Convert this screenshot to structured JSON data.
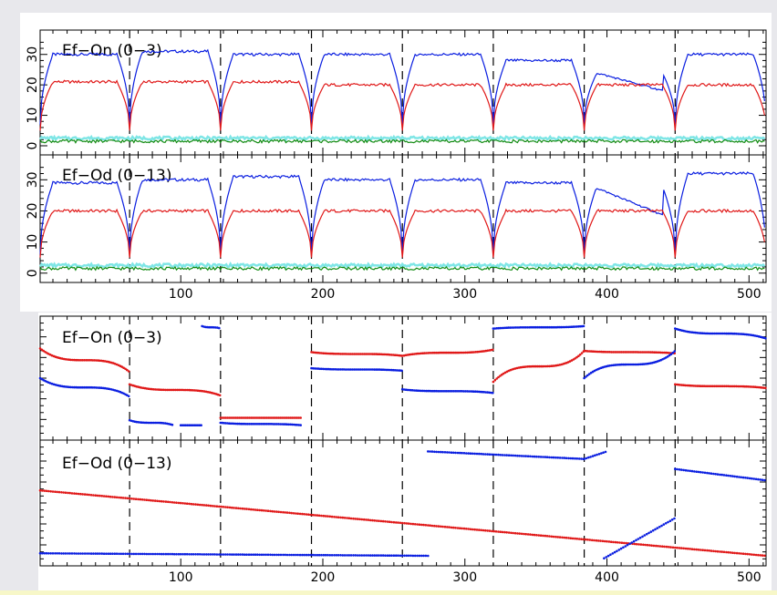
{
  "colors": {
    "blue": "#0a1ee0",
    "red": "#e01818",
    "green": "#108a10",
    "cyan": "#7fe6e6",
    "panel_bg": "#ffffff",
    "page_bg": "#e8e8ec"
  },
  "chart_data": [
    {
      "type": "line",
      "title": "Ef−On (0−3)",
      "xlim": [
        1,
        512
      ],
      "ylim": [
        -3,
        38
      ],
      "yticks": [
        0,
        10,
        20,
        30
      ],
      "show_x_tick_labels": false,
      "segment_boundaries": [
        64,
        128,
        192,
        256,
        320,
        384,
        448
      ],
      "series": [
        {
          "color": "blue",
          "plateaus": [
            30,
            31,
            30,
            30,
            30,
            28,
            24,
            30
          ],
          "dip_min": 7
        },
        {
          "color": "red",
          "plateaus": [
            21,
            21,
            21,
            20,
            20,
            20,
            20,
            20
          ],
          "dip_min": 5
        },
        {
          "color": "cyan",
          "plateaus": [
            2.5,
            2.5,
            2.5,
            2.5,
            2.5,
            2.5,
            2.5,
            2.5
          ]
        },
        {
          "color": "green",
          "plateaus": [
            1.5,
            1.5,
            1.5,
            1.5,
            1.5,
            1.5,
            1.5,
            1.5
          ]
        }
      ]
    },
    {
      "type": "line",
      "title": "Ef−Od (0−13)",
      "xlim": [
        1,
        512
      ],
      "ylim": [
        -3,
        38
      ],
      "yticks": [
        0,
        10,
        20,
        30
      ],
      "xticks": [
        100,
        200,
        300,
        400,
        500
      ],
      "show_x_tick_labels": true,
      "segment_boundaries": [
        64,
        128,
        192,
        256,
        320,
        384,
        448
      ],
      "series": [
        {
          "color": "blue",
          "plateaus": [
            29,
            30,
            31,
            30,
            30,
            29,
            28,
            32
          ],
          "dip_min": 6
        },
        {
          "color": "red",
          "plateaus": [
            20,
            20,
            20,
            20,
            20,
            20,
            20,
            20
          ],
          "dip_min": 5
        },
        {
          "color": "cyan",
          "plateaus": [
            2.5,
            2.5,
            2.5,
            2.5,
            2.5,
            2.5,
            2.5,
            2.5
          ]
        },
        {
          "color": "green",
          "plateaus": [
            1.5,
            1.5,
            1.5,
            1.5,
            1.5,
            1.5,
            1.5,
            1.5
          ]
        }
      ]
    },
    {
      "type": "scatter",
      "title": "Ef−On (0−3)",
      "xlim": [
        1,
        512
      ],
      "ylim": [
        0,
        1
      ],
      "show_x_tick_labels": false,
      "segment_boundaries": [
        64,
        128,
        192,
        256,
        320,
        384,
        448
      ],
      "series": [
        {
          "color": "red"
        },
        {
          "color": "blue"
        }
      ]
    },
    {
      "type": "scatter",
      "title": "Ef−Od (0−13)",
      "xlim": [
        1,
        512
      ],
      "ylim": [
        0,
        1
      ],
      "xticks": [
        100,
        200,
        300,
        400,
        500
      ],
      "show_x_tick_labels": true,
      "segment_boundaries": [
        64,
        128,
        192,
        256,
        320,
        384,
        448
      ],
      "series": [
        {
          "color": "red",
          "x": [
            1,
            512
          ],
          "y": [
            0.6,
            0.08
          ]
        },
        {
          "color": "blue",
          "x": [
            1,
            274
          ],
          "y": [
            0.1,
            0.08
          ]
        },
        {
          "color": "blue",
          "x": [
            274,
            384,
            400
          ],
          "y": [
            0.91,
            0.85,
            0.91
          ]
        },
        {
          "color": "blue",
          "x": [
            398,
            448
          ],
          "y": [
            0.06,
            0.38
          ]
        },
        {
          "color": "blue",
          "x": [
            448,
            512
          ],
          "y": [
            0.77,
            0.68
          ]
        }
      ]
    }
  ]
}
